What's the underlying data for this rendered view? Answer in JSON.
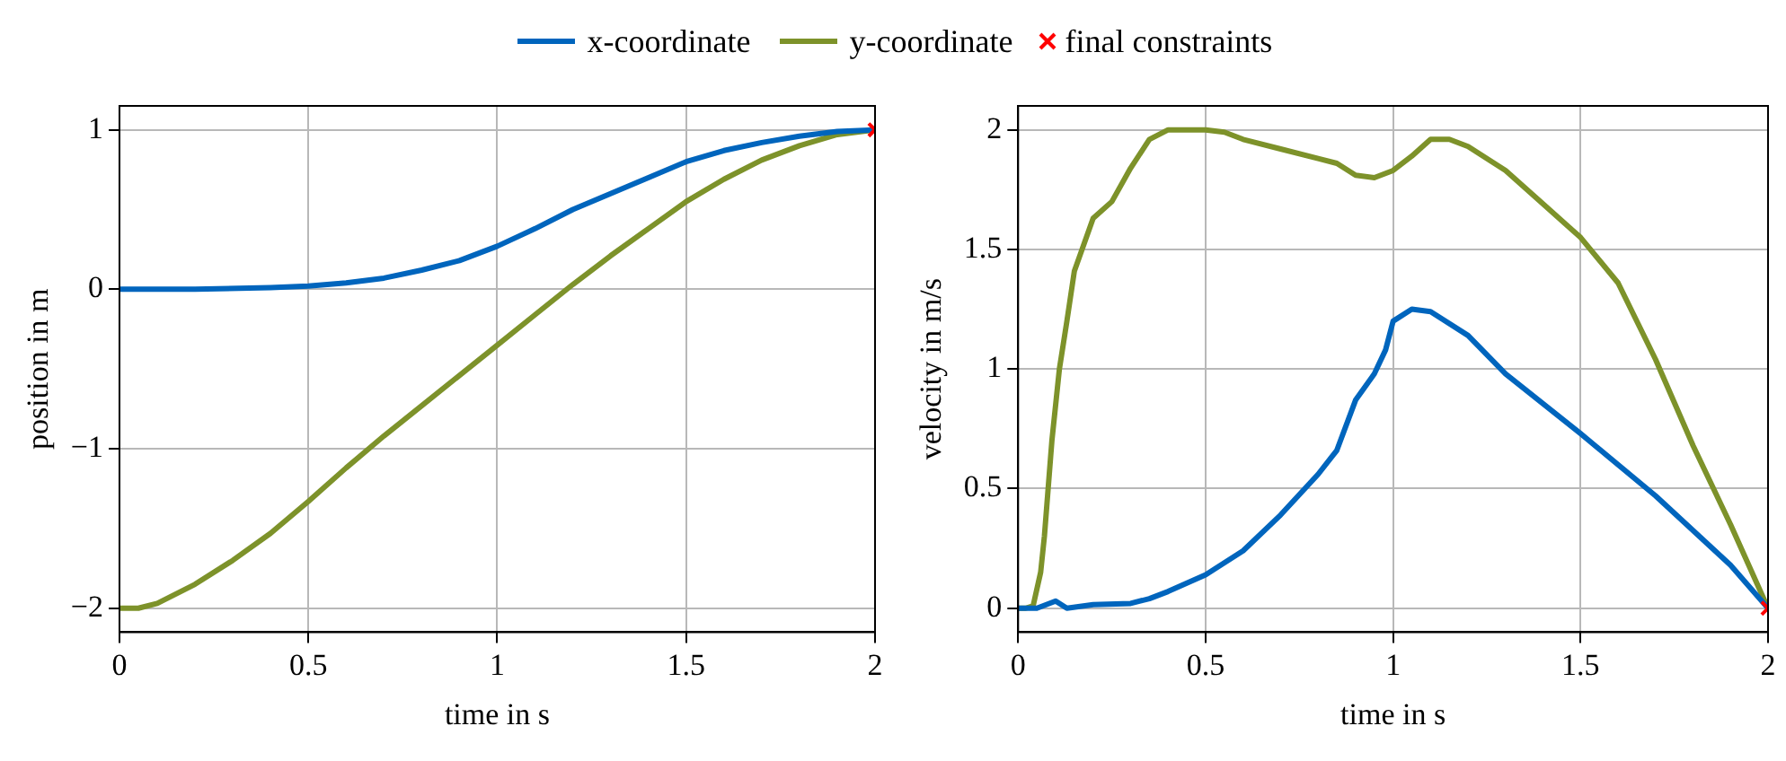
{
  "chart_data": [
    {
      "type": "line",
      "xlabel": "time in s",
      "ylabel": "position in m",
      "xlim": [
        0,
        2
      ],
      "xticks": [
        0,
        0.5,
        1,
        1.5,
        2
      ],
      "ylim": [
        -2.15,
        1.15
      ],
      "yticks": [
        {
          "value": -2,
          "label": "−2"
        },
        {
          "value": -1,
          "label": "−1"
        },
        0,
        1
      ],
      "grid": true,
      "legend": "top",
      "series": [
        {
          "name": "x-coordinate",
          "type": "line",
          "color": "#0065bd",
          "x": [
            0,
            0.2,
            0.4,
            0.5,
            0.6,
            0.7,
            0.8,
            0.9,
            1.0,
            1.1,
            1.2,
            1.3,
            1.4,
            1.5,
            1.6,
            1.7,
            1.8,
            1.9,
            2
          ],
          "values": [
            0,
            0,
            0.01,
            0.02,
            0.04,
            0.07,
            0.12,
            0.18,
            0.27,
            0.38,
            0.5,
            0.6,
            0.7,
            0.8,
            0.87,
            0.92,
            0.96,
            0.99,
            1
          ]
        },
        {
          "name": "y-coordinate",
          "type": "line",
          "color": "#7d922a",
          "x": [
            0,
            0.05,
            0.1,
            0.2,
            0.3,
            0.4,
            0.5,
            0.6,
            0.7,
            0.8,
            0.9,
            1.0,
            1.1,
            1.2,
            1.3,
            1.4,
            1.5,
            1.6,
            1.7,
            1.8,
            1.9,
            2
          ],
          "values": [
            -2,
            -2,
            -1.97,
            -1.85,
            -1.7,
            -1.53,
            -1.33,
            -1.12,
            -0.92,
            -0.73,
            -0.54,
            -0.35,
            -0.16,
            0.03,
            0.21,
            0.38,
            0.55,
            0.69,
            0.81,
            0.9,
            0.97,
            1
          ]
        },
        {
          "name": "final constraints",
          "type": "scatter",
          "marker": "cross",
          "color": "#ff0000",
          "x": [
            2
          ],
          "values": [
            1
          ]
        }
      ]
    },
    {
      "type": "line",
      "xlabel": "time in s",
      "ylabel": "velocity in m/s",
      "xlim": [
        0,
        2
      ],
      "xticks": [
        0,
        0.5,
        1,
        1.5,
        2
      ],
      "ylim": [
        -0.1,
        2.1
      ],
      "yticks": [
        0,
        0.5,
        1,
        1.5,
        2
      ],
      "grid": true,
      "series": [
        {
          "type": "line",
          "color": "#0065bd",
          "x": [
            0,
            0.05,
            0.1,
            0.13,
            0.2,
            0.3,
            0.35,
            0.4,
            0.5,
            0.6,
            0.7,
            0.8,
            0.85,
            0.9,
            0.95,
            0.98,
            1.0,
            1.05,
            1.1,
            1.2,
            1.3,
            1.5,
            1.7,
            1.9,
            2
          ],
          "values": [
            0,
            0,
            0.03,
            0,
            0.015,
            0.02,
            0.04,
            0.07,
            0.14,
            0.24,
            0.39,
            0.56,
            0.66,
            0.87,
            0.98,
            1.08,
            1.2,
            1.25,
            1.24,
            1.14,
            0.98,
            0.73,
            0.47,
            0.18,
            0
          ]
        },
        {
          "type": "line",
          "color": "#7d922a",
          "x": [
            0,
            0.02,
            0.04,
            0.06,
            0.07,
            0.09,
            0.11,
            0.13,
            0.15,
            0.2,
            0.25,
            0.3,
            0.35,
            0.4,
            0.5,
            0.55,
            0.6,
            0.7,
            0.8,
            0.85,
            0.9,
            0.95,
            1.0,
            1.05,
            1.1,
            1.15,
            1.2,
            1.3,
            1.4,
            1.5,
            1.6,
            1.7,
            1.8,
            1.9,
            2
          ],
          "values": [
            0,
            0,
            0.01,
            0.15,
            0.3,
            0.7,
            1.0,
            1.2,
            1.41,
            1.63,
            1.7,
            1.84,
            1.96,
            2.0,
            2.0,
            1.99,
            1.96,
            1.92,
            1.88,
            1.86,
            1.81,
            1.8,
            1.83,
            1.89,
            1.96,
            1.96,
            1.93,
            1.83,
            1.69,
            1.55,
            1.36,
            1.04,
            0.68,
            0.35,
            0
          ]
        },
        {
          "type": "scatter",
          "marker": "cross",
          "color": "#ff0000",
          "x": [
            2
          ],
          "values": [
            0
          ]
        }
      ]
    }
  ]
}
